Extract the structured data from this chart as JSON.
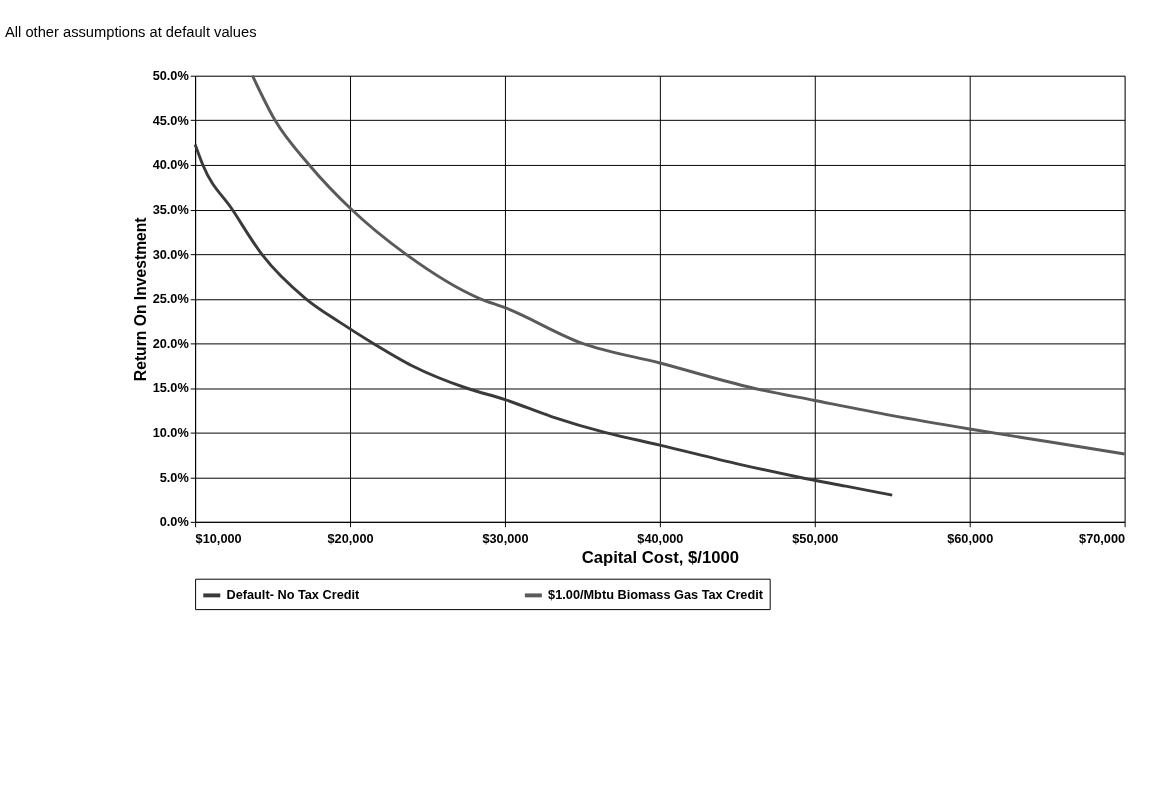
{
  "chart_data": {
    "type": "line",
    "title": "All other assumptions at default values",
    "xlabel": "Capital Cost, $/1000",
    "ylabel": "Return On Investment",
    "xlim": [
      10000,
      70000
    ],
    "xticks": [
      {
        "value": 10000,
        "label": "$10,000"
      },
      {
        "value": 20000,
        "label": "$20,000"
      },
      {
        "value": 30000,
        "label": "$30,000"
      },
      {
        "value": 40000,
        "label": "$40,000"
      },
      {
        "value": 50000,
        "label": "$50,000"
      },
      {
        "value": 60000,
        "label": "$60,000"
      },
      {
        "value": 70000,
        "label": "$70,000"
      }
    ],
    "ylim": [
      0,
      50
    ],
    "yticks": [
      {
        "value": 0,
        "label": "0.0%"
      },
      {
        "value": 5,
        "label": "5.0%"
      },
      {
        "value": 10,
        "label": "10.0%"
      },
      {
        "value": 15,
        "label": "15.0%"
      },
      {
        "value": 20,
        "label": "20.0%"
      },
      {
        "value": 25,
        "label": "25.0%"
      },
      {
        "value": 30,
        "label": "30.0%"
      },
      {
        "value": 35,
        "label": "35.0%"
      },
      {
        "value": 40,
        "label": "40.0%"
      },
      {
        "value": 45,
        "label": "45.0%"
      },
      {
        "value": 50,
        "label": "50.0%"
      }
    ],
    "grid": true,
    "legend": "bottom",
    "marker": "none",
    "line_style": "solid",
    "series": [
      {
        "name": "Default- No Tax Credit",
        "color": "#3a3a3a",
        "x": [
          10000,
          10500,
          12400,
          14300,
          17150,
          19400,
          21500,
          24000,
          27500,
          30000,
          33000,
          36500,
          40000,
          45000,
          49000,
          52000,
          55000
        ],
        "values": [
          42.3,
          40,
          35,
          30,
          25,
          22.3,
          20,
          17.5,
          15,
          13.7,
          11.8,
          10,
          8.6,
          6.5,
          5,
          4,
          3
        ]
      },
      {
        "name": "$1.00/Mbtu Biomass Gas Tax Credit",
        "color": "#5a5a5a",
        "x": [
          13700,
          15160,
          17370,
          20100,
          23600,
          28400,
          30000,
          35000,
          40000,
          46000,
          50000,
          55000,
          60000,
          65000,
          70000
        ],
        "values": [
          50,
          45,
          40,
          35,
          30,
          25,
          24,
          20,
          17.8,
          15,
          13.6,
          11.9,
          10.4,
          9,
          7.6
        ]
      }
    ]
  }
}
